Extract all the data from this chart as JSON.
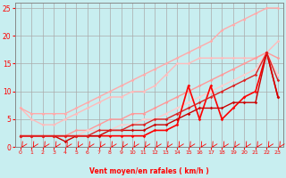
{
  "background_color": "#c8eef0",
  "grid_color": "#aaaaaa",
  "xlabel": "Vent moyen/en rafales ( km/h )",
  "xlabel_color": "#ff0000",
  "tick_color": "#ff0000",
  "xlim": [
    -0.5,
    23.5
  ],
  "ylim": [
    0,
    26
  ],
  "yticks": [
    0,
    5,
    10,
    15,
    20,
    25
  ],
  "xticks": [
    0,
    1,
    2,
    3,
    4,
    5,
    6,
    7,
    8,
    9,
    10,
    11,
    12,
    13,
    14,
    15,
    16,
    17,
    18,
    19,
    20,
    21,
    22,
    23
  ],
  "series": [
    {
      "x": [
        0,
        1,
        2,
        3,
        4,
        5,
        6,
        7,
        8,
        9,
        10,
        11,
        12,
        13,
        14,
        15,
        16,
        17,
        18,
        19,
        20,
        21,
        22,
        23
      ],
      "y": [
        7,
        5,
        4,
        4,
        5,
        6,
        7,
        8,
        9,
        9,
        10,
        10,
        11,
        13,
        15,
        15,
        16,
        16,
        16,
        16,
        16,
        16,
        17,
        19
      ],
      "color": "#ffbbbb",
      "lw": 1.0
    },
    {
      "x": [
        0,
        1,
        2,
        3,
        4,
        5,
        6,
        7,
        8,
        9,
        10,
        11,
        12,
        13,
        14,
        15,
        16,
        17,
        18,
        19,
        20,
        21,
        22,
        23
      ],
      "y": [
        7,
        6,
        6,
        6,
        6,
        7,
        8,
        9,
        10,
        11,
        12,
        13,
        14,
        15,
        16,
        17,
        18,
        19,
        21,
        22,
        23,
        24,
        25,
        25
      ],
      "color": "#ffaaaa",
      "lw": 1.0
    },
    {
      "x": [
        0,
        1,
        2,
        3,
        4,
        5,
        6,
        7,
        8,
        9,
        10,
        11,
        12,
        13,
        14,
        15,
        16,
        17,
        18,
        19,
        20,
        21,
        22,
        23
      ],
      "y": [
        2,
        2,
        2,
        2,
        2,
        3,
        3,
        4,
        5,
        5,
        6,
        6,
        7,
        8,
        9,
        10,
        11,
        12,
        13,
        14,
        15,
        16,
        17,
        16
      ],
      "color": "#ff9999",
      "lw": 1.0
    },
    {
      "x": [
        0,
        1,
        2,
        3,
        4,
        5,
        6,
        7,
        8,
        9,
        10,
        11,
        12,
        13,
        14,
        15,
        16,
        17,
        18,
        19,
        20,
        21,
        22,
        23
      ],
      "y": [
        2,
        2,
        2,
        2,
        2,
        2,
        3,
        3,
        3,
        4,
        4,
        5,
        5,
        6,
        7,
        8,
        9,
        10,
        11,
        12,
        13,
        14,
        17,
        13
      ],
      "color": "#ffcccc",
      "lw": 1.0
    },
    {
      "x": [
        0,
        1,
        2,
        3,
        4,
        5,
        6,
        7,
        8,
        9,
        10,
        11,
        12,
        13,
        14,
        15,
        16,
        17,
        18,
        19,
        20,
        21,
        22,
        23
      ],
      "y": [
        2,
        2,
        2,
        2,
        2,
        2,
        2,
        2,
        2,
        2,
        2,
        2,
        3,
        3,
        4,
        11,
        5,
        11,
        5,
        7,
        9,
        10,
        17,
        9
      ],
      "color": "#ff0000",
      "lw": 1.2
    },
    {
      "x": [
        0,
        1,
        2,
        3,
        4,
        5,
        6,
        7,
        8,
        9,
        10,
        11,
        12,
        13,
        14,
        15,
        16,
        17,
        18,
        19,
        20,
        21,
        22,
        23
      ],
      "y": [
        2,
        2,
        2,
        2,
        1,
        2,
        2,
        2,
        3,
        3,
        3,
        3,
        4,
        4,
        5,
        6,
        7,
        7,
        7,
        8,
        8,
        8,
        17,
        9
      ],
      "color": "#cc0000",
      "lw": 1.0
    },
    {
      "x": [
        0,
        1,
        2,
        3,
        4,
        5,
        6,
        7,
        8,
        9,
        10,
        11,
        12,
        13,
        14,
        15,
        16,
        17,
        18,
        19,
        20,
        21,
        22,
        23
      ],
      "y": [
        2,
        2,
        2,
        2,
        2,
        2,
        2,
        3,
        3,
        3,
        4,
        4,
        5,
        5,
        6,
        7,
        8,
        9,
        10,
        11,
        12,
        13,
        17,
        12
      ],
      "color": "#dd2222",
      "lw": 1.0
    }
  ]
}
